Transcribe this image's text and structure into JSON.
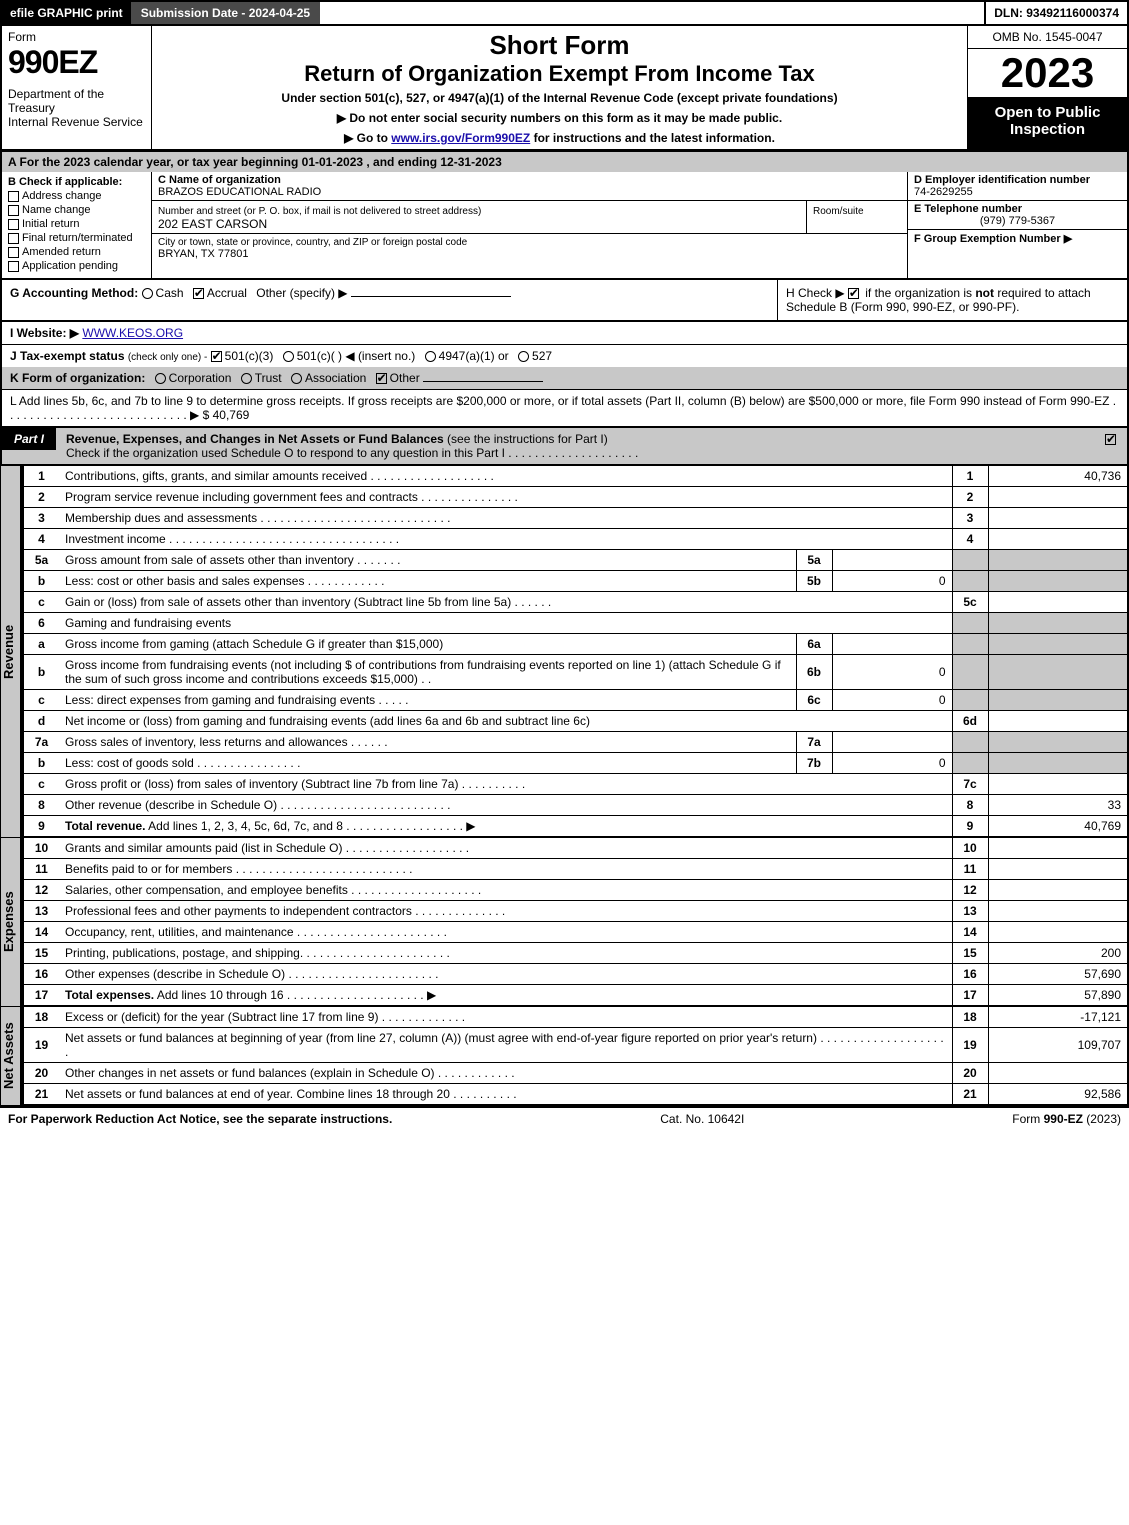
{
  "topbar": {
    "efile": "efile GRAPHIC print",
    "subdate": "Submission Date - 2024-04-25",
    "dln": "DLN: 93492116000374"
  },
  "header": {
    "formword": "Form",
    "formnum": "990EZ",
    "dept": "Department of the Treasury\nInternal Revenue Service",
    "short": "Short Form",
    "ret": "Return of Organization Exempt From Income Tax",
    "under": "Under section 501(c), 527, or 4947(a)(1) of the Internal Revenue Code (except private foundations)",
    "arrow1": "▶ Do not enter social security numbers on this form as it may be made public.",
    "arrow2_pre": "▶ Go to ",
    "arrow2_link": "www.irs.gov/Form990EZ",
    "arrow2_post": " for instructions and the latest information.",
    "omb": "OMB No. 1545-0047",
    "year": "2023",
    "open": "Open to Public Inspection"
  },
  "rowA": "A  For the 2023 calendar year, or tax year beginning 01-01-2023 , and ending 12-31-2023",
  "B": {
    "label": "B  Check if applicable:",
    "opts": [
      "Address change",
      "Name change",
      "Initial return",
      "Final return/terminated",
      "Amended return",
      "Application pending"
    ]
  },
  "C": {
    "nameLabel": "C Name of organization",
    "name": "BRAZOS EDUCATIONAL RADIO",
    "streetLabel": "Number and street (or P. O. box, if mail is not delivered to street address)",
    "roomLabel": "Room/suite",
    "street": "202 EAST CARSON",
    "cityLabel": "City or town, state or province, country, and ZIP or foreign postal code",
    "city": "BRYAN, TX  77801"
  },
  "D": {
    "einLabel": "D Employer identification number",
    "ein": "74-2629255",
    "telLabel": "E Telephone number",
    "tel": "(979) 779-5367",
    "groupLabel": "F Group Exemption Number  ▶"
  },
  "G": {
    "label": "G Accounting Method:",
    "cash": "Cash",
    "accrual": "Accrual",
    "other": "Other (specify) ▶"
  },
  "H": {
    "text1": "H  Check ▶ ",
    "text2": " if the organization is ",
    "not": "not",
    "text3": " required to attach Schedule B (Form 990, 990-EZ, or 990-PF)."
  },
  "I": {
    "label": "I Website: ▶",
    "site": "WWW.KEOS.ORG"
  },
  "J": {
    "label": "J Tax-exempt status",
    "hint": "(check only one) -",
    "opt1": "501(c)(3)",
    "opt2": "501(c)(  ) ◀ (insert no.)",
    "opt3": "4947(a)(1) or",
    "opt4": "527"
  },
  "K": {
    "label": "K Form of organization:",
    "opts": [
      "Corporation",
      "Trust",
      "Association",
      "Other"
    ]
  },
  "L": {
    "text": "L Add lines 5b, 6c, and 7b to line 9 to determine gross receipts. If gross receipts are $200,000 or more, or if total assets (Part II, column (B) below) are $500,000 or more, file Form 990 instead of Form 990-EZ  .  .  .  .  .  .  .  .  .  .  .  .  .  .  .  .  .  .  .  .  .  .  .  .  .  .  .  .  ▶ $",
    "amount": "40,769"
  },
  "partI": {
    "tag": "Part I",
    "title": "Revenue, Expenses, and Changes in Net Assets or Fund Balances",
    "hint": "(see the instructions for Part I)",
    "check": "Check if the organization used Schedule O to respond to any question in this Part I  .  .  .  .  .  .  .  .  .  .  .  .  .  .  .  .  .  .  .  ."
  },
  "sections": {
    "revenue": {
      "label": "Revenue",
      "rows": [
        {
          "n": "1",
          "d": "Contributions, gifts, grants, and similar amounts received  .  .  .  .  .  .  .  .  .  .  .  .  .  .  .  .  .  .  .",
          "r": "1",
          "v": "40,736"
        },
        {
          "n": "2",
          "d": "Program service revenue including government fees and contracts  .  .  .  .  .  .  .  .  .  .  .  .  .  .  .",
          "r": "2",
          "v": ""
        },
        {
          "n": "3",
          "d": "Membership dues and assessments  .  .  .  .  .  .  .  .  .  .  .  .  .  .  .  .  .  .  .  .  .  .  .  .  .  .  .  .  .",
          "r": "3",
          "v": ""
        },
        {
          "n": "4",
          "d": "Investment income  .  .  .  .  .  .  .  .  .  .  .  .  .  .  .  .  .  .  .  .  .  .  .  .  .  .  .  .  .  .  .  .  .  .  .",
          "r": "4",
          "v": ""
        },
        {
          "n": "5a",
          "d": "Gross amount from sale of assets other than inventory  .  .  .  .  .  .  .",
          "sub": "5a",
          "sv": "",
          "grey": true
        },
        {
          "n": "b",
          "d": "Less: cost or other basis and sales expenses  .  .  .  .  .  .  .  .  .  .  .  .",
          "sub": "5b",
          "sv": "0",
          "grey": true
        },
        {
          "n": "c",
          "d": "Gain or (loss) from sale of assets other than inventory (Subtract line 5b from line 5a)  .  .  .  .  .  .",
          "r": "5c",
          "v": ""
        },
        {
          "n": "6",
          "d": "Gaming and fundraising events",
          "grey": true
        },
        {
          "n": "a",
          "d": "Gross income from gaming (attach Schedule G if greater than $15,000)",
          "sub": "6a",
          "sv": "",
          "grey": true
        },
        {
          "n": "b",
          "d": "Gross income from fundraising events (not including $                 of contributions from fundraising events reported on line 1) (attach Schedule G if the sum of such gross income and contributions exceeds $15,000)   .   .",
          "sub": "6b",
          "sv": "0",
          "grey": true
        },
        {
          "n": "c",
          "d": "Less: direct expenses from gaming and fundraising events   .  .  .  .  .",
          "sub": "6c",
          "sv": "0",
          "grey": true
        },
        {
          "n": "d",
          "d": "Net income or (loss) from gaming and fundraising events (add lines 6a and 6b and subtract line 6c)",
          "r": "6d",
          "v": ""
        },
        {
          "n": "7a",
          "d": "Gross sales of inventory, less returns and allowances  .  .  .  .  .  .",
          "sub": "7a",
          "sv": "",
          "grey": true
        },
        {
          "n": "b",
          "d": "Less: cost of goods sold   .  .  .  .  .  .  .  .  .  .  .  .  .  .  .  .",
          "sub": "7b",
          "sv": "0",
          "grey": true
        },
        {
          "n": "c",
          "d": "Gross profit or (loss) from sales of inventory (Subtract line 7b from line 7a)  .  .  .  .  .  .  .  .  .  .",
          "r": "7c",
          "v": ""
        },
        {
          "n": "8",
          "d": "Other revenue (describe in Schedule O)  .  .  .  .  .  .  .  .  .  .  .  .  .  .  .  .  .  .  .  .  .  .  .  .  .  .",
          "r": "8",
          "v": "33"
        },
        {
          "n": "9",
          "d": "Total revenue. Add lines 1, 2, 3, 4, 5c, 6d, 7c, and 8   .  .  .  .  .  .  .  .  .  .  .  .  .  .  .  .  .  .  ▶",
          "r": "9",
          "v": "40,769",
          "bold": true
        }
      ]
    },
    "expenses": {
      "label": "Expenses",
      "rows": [
        {
          "n": "10",
          "d": "Grants and similar amounts paid (list in Schedule O)  .  .  .  .  .  .  .  .  .  .  .  .  .  .  .  .  .  .  .",
          "r": "10",
          "v": ""
        },
        {
          "n": "11",
          "d": "Benefits paid to or for members   .  .  .  .  .  .  .  .  .  .  .  .  .  .  .  .  .  .  .  .  .  .  .  .  .  .  .",
          "r": "11",
          "v": ""
        },
        {
          "n": "12",
          "d": "Salaries, other compensation, and employee benefits  .  .  .  .  .  .  .  .  .  .  .  .  .  .  .  .  .  .  .  .",
          "r": "12",
          "v": ""
        },
        {
          "n": "13",
          "d": "Professional fees and other payments to independent contractors  .  .  .  .  .  .  .  .  .  .  .  .  .  .",
          "r": "13",
          "v": ""
        },
        {
          "n": "14",
          "d": "Occupancy, rent, utilities, and maintenance  .  .  .  .  .  .  .  .  .  .  .  .  .  .  .  .  .  .  .  .  .  .  .",
          "r": "14",
          "v": ""
        },
        {
          "n": "15",
          "d": "Printing, publications, postage, and shipping.  .  .  .  .  .  .  .  .  .  .  .  .  .  .  .  .  .  .  .  .  .  .",
          "r": "15",
          "v": "200"
        },
        {
          "n": "16",
          "d": "Other expenses (describe in Schedule O)   .  .  .  .  .  .  .  .  .  .  .  .  .  .  .  .  .  .  .  .  .  .  .",
          "r": "16",
          "v": "57,690"
        },
        {
          "n": "17",
          "d": "Total expenses. Add lines 10 through 16   .  .  .  .  .  .  .  .  .  .  .  .  .  .  .  .  .  .  .  .  .  ▶",
          "r": "17",
          "v": "57,890",
          "bold": true
        }
      ]
    },
    "netassets": {
      "label": "Net Assets",
      "rows": [
        {
          "n": "18",
          "d": "Excess or (deficit) for the year (Subtract line 17 from line 9)   .  .  .  .  .  .  .  .  .  .  .  .  .",
          "r": "18",
          "v": "-17,121"
        },
        {
          "n": "19",
          "d": "Net assets or fund balances at beginning of year (from line 27, column (A)) (must agree with end-of-year figure reported on prior year's return)  .  .  .  .  .  .  .  .  .  .  .  .  .  .  .  .  .  .  .  .",
          "r": "19",
          "v": "109,707"
        },
        {
          "n": "20",
          "d": "Other changes in net assets or fund balances (explain in Schedule O)  .  .  .  .  .  .  .  .  .  .  .  .",
          "r": "20",
          "v": ""
        },
        {
          "n": "21",
          "d": "Net assets or fund balances at end of year. Combine lines 18 through 20  .  .  .  .  .  .  .  .  .  .",
          "r": "21",
          "v": "92,586"
        }
      ]
    }
  },
  "footer": {
    "left": "For Paperwork Reduction Act Notice, see the separate instructions.",
    "mid": "Cat. No. 10642I",
    "right_pre": "Form ",
    "right_bold": "990-EZ",
    "right_post": " (2023)"
  }
}
